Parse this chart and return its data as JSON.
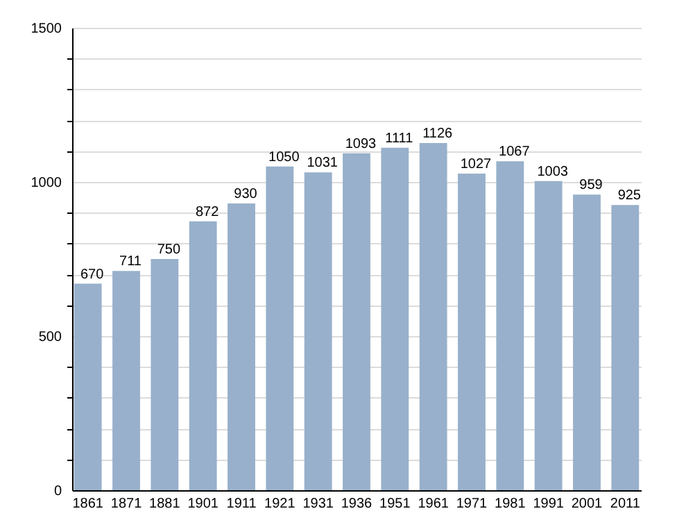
{
  "chart_data": {
    "type": "bar",
    "categories": [
      "1861",
      "1871",
      "1881",
      "1901",
      "1911",
      "1921",
      "1931",
      "1936",
      "1951",
      "1961",
      "1971",
      "1981",
      "1991",
      "2001",
      "2011"
    ],
    "values": [
      670,
      711,
      750,
      872,
      930,
      1050,
      1031,
      1093,
      1111,
      1126,
      1027,
      1067,
      1003,
      959,
      925
    ],
    "color": "#98b0cb",
    "data_labels": true,
    "ylim": [
      0,
      1500
    ],
    "yticks": [
      0,
      {
        "value": 100,
        "label": null
      },
      {
        "value": 200,
        "label": null
      },
      {
        "value": 300,
        "label": null
      },
      {
        "value": 400,
        "label": null
      },
      500,
      {
        "value": 600,
        "label": null
      },
      {
        "value": 700,
        "label": null
      },
      {
        "value": 800,
        "label": null
      },
      {
        "value": 900,
        "label": null
      },
      1000,
      {
        "value": 1100,
        "label": null
      },
      {
        "value": 1200,
        "label": null
      },
      {
        "value": 1300,
        "label": null
      },
      {
        "value": 1400,
        "label": null
      },
      1500
    ],
    "grid": true
  }
}
